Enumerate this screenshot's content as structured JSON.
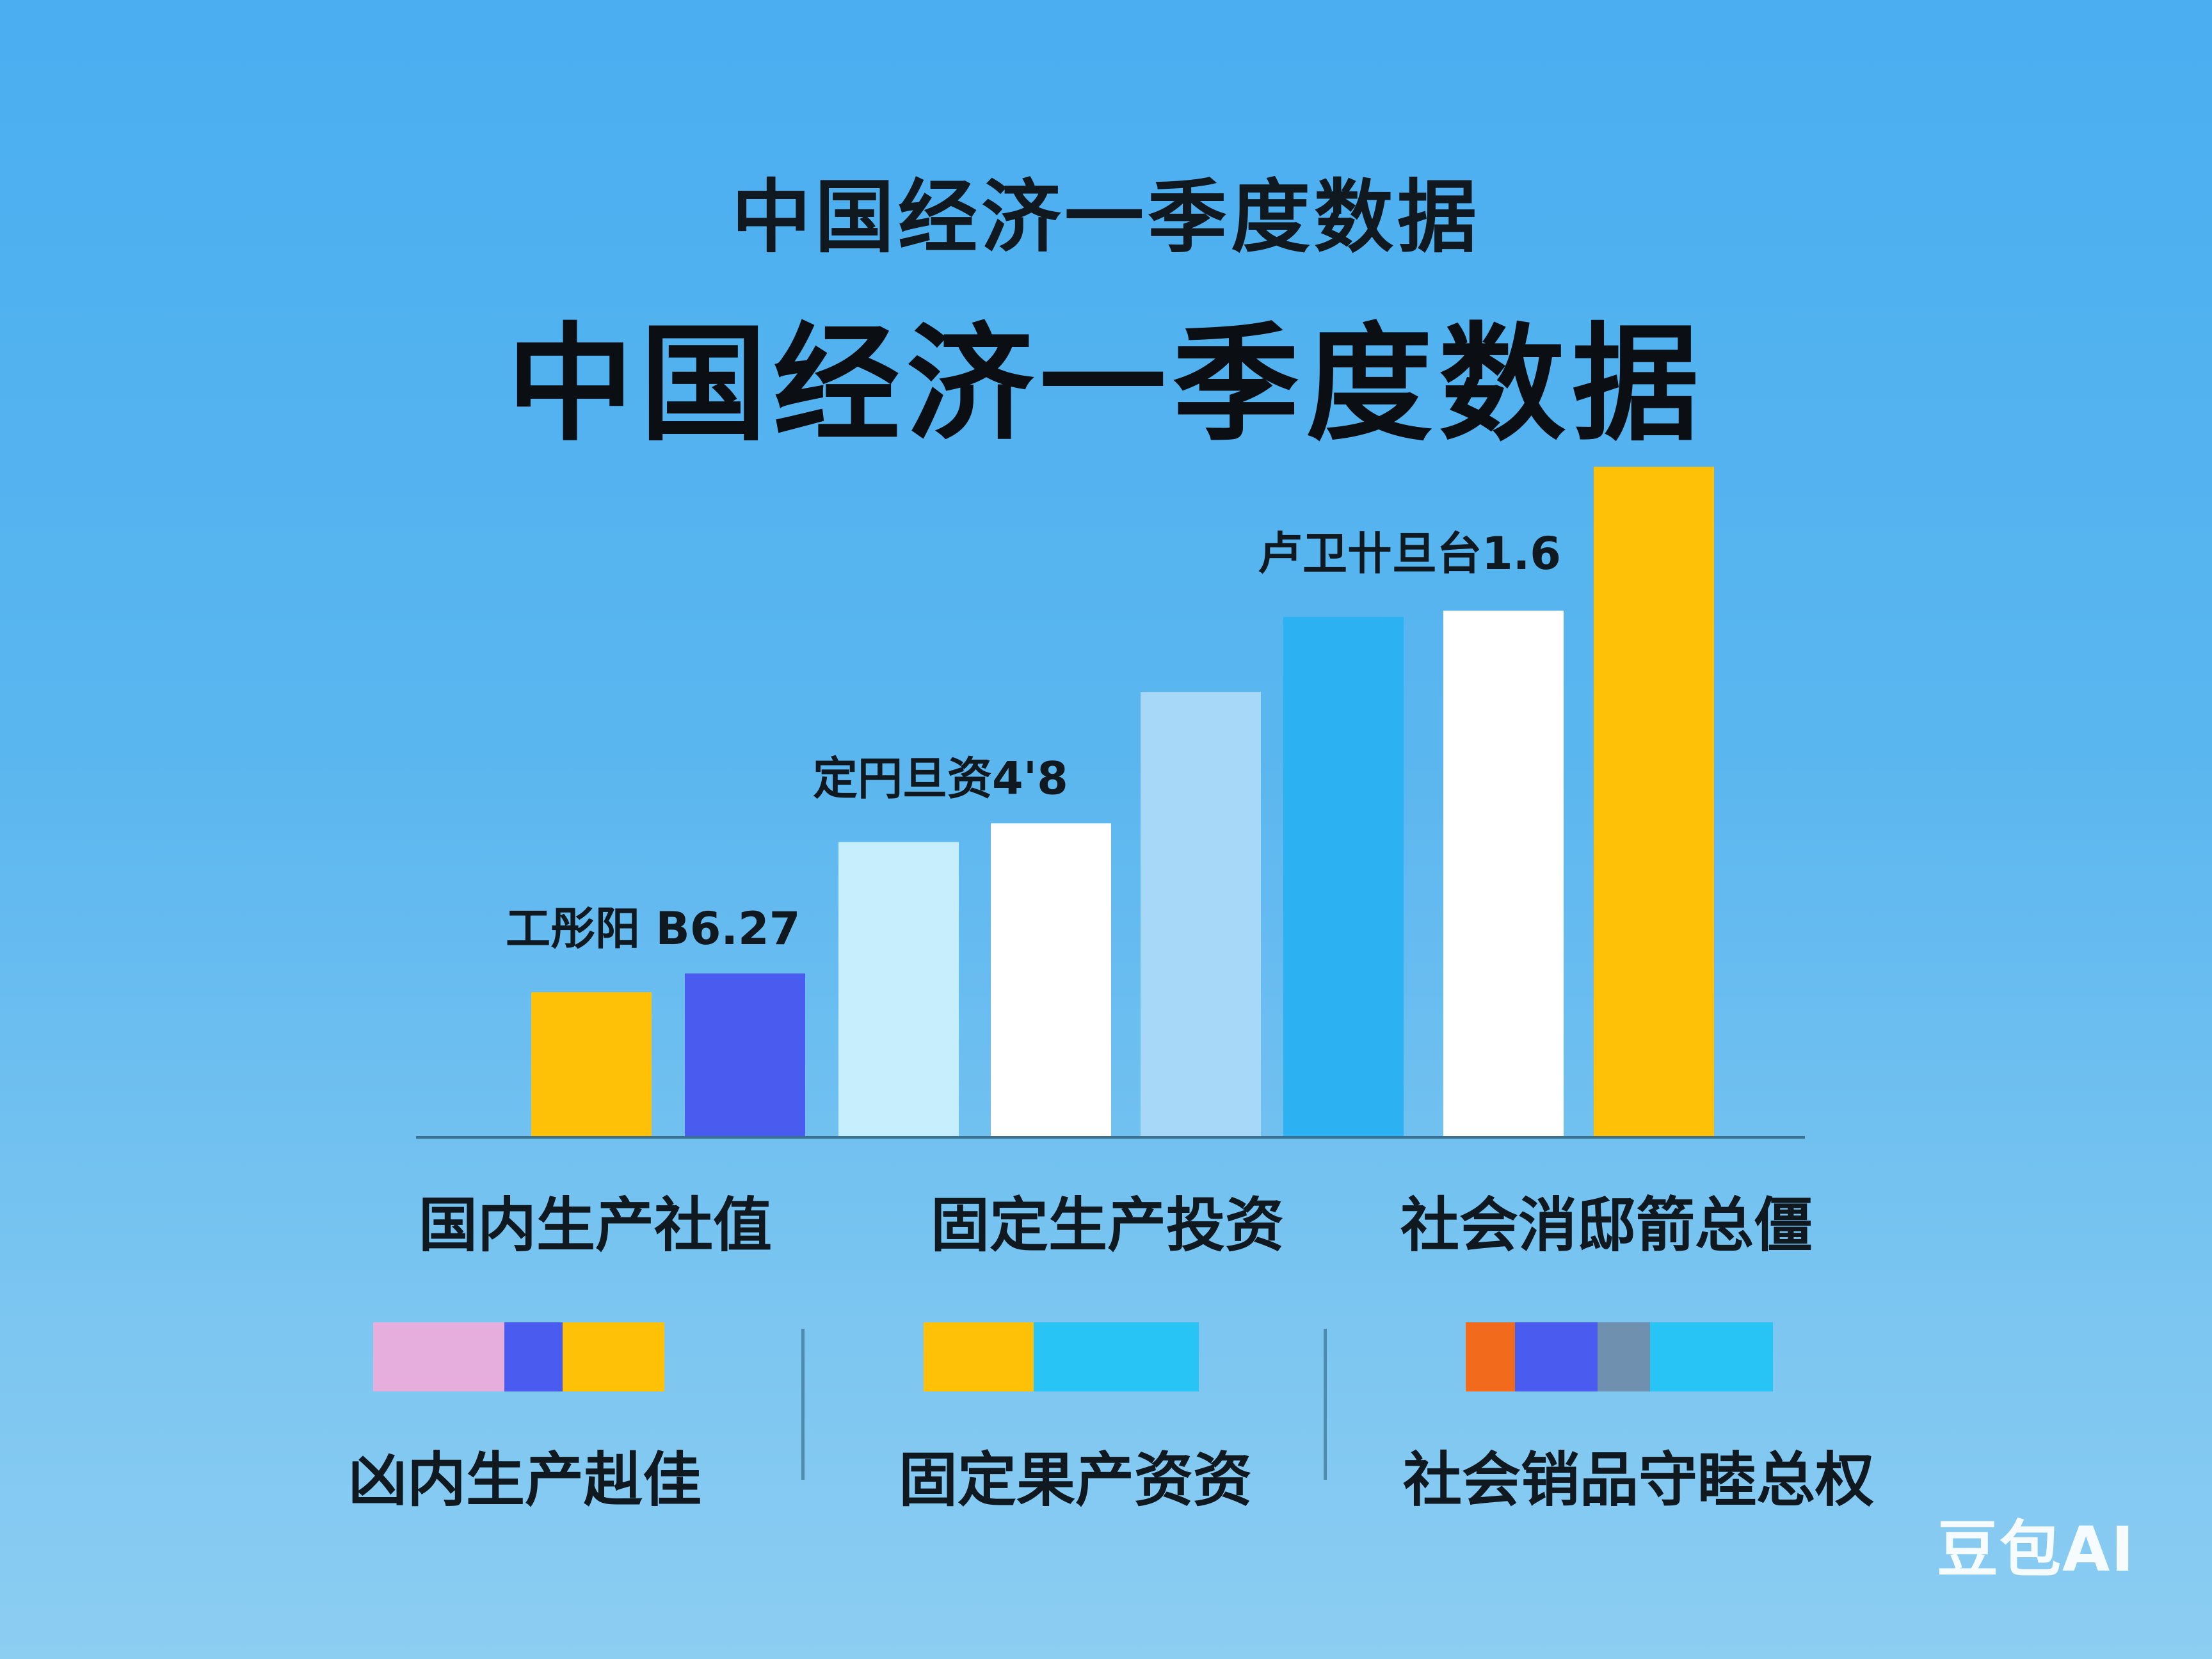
{
  "chart_data": {
    "type": "bar",
    "subtitle": "中国经济一季度数据",
    "title": "中国经济一季度数据",
    "xlabel": "",
    "ylabel": "",
    "grid": false,
    "categories": [
      "国内生产社值",
      "固定生产投资",
      "社会消邸箭总僵"
    ],
    "bars": [
      {
        "group": 0,
        "value": 23,
        "color": "#FFC107"
      },
      {
        "group": 0,
        "value": 26,
        "color": "#4A5CF0"
      },
      {
        "group": 1,
        "value": 47,
        "color": "#C6EEFD"
      },
      {
        "group": 1,
        "value": 50,
        "color": "#FFFFFF"
      },
      {
        "group": 1,
        "value": 71,
        "color": "#A8D8F8"
      },
      {
        "group": 2,
        "value": 83,
        "color": "#2CB2F2"
      },
      {
        "group": 2,
        "value": 84,
        "color": "#FFFFFF"
      },
      {
        "group": 2,
        "value": 107,
        "color": "#FFC107"
      }
    ],
    "annotations": [
      {
        "text": "工彤阳 B6.27",
        "bar": 0
      },
      {
        "text": "定円旦资4'8",
        "bar": 2
      },
      {
        "text": "卢卫卄旦台1.6",
        "bar": 5
      }
    ],
    "ylim": [
      0,
      110
    ]
  },
  "legend": {
    "groups": [
      {
        "label": "凶内生产赳佳",
        "colors": [
          "#E5AEDD",
          "#4A5CF0",
          "#FFC107"
        ],
        "weights": [
          0.45,
          0.2,
          0.35
        ]
      },
      {
        "label": "固定果产资资",
        "colors": [
          "#FFC107",
          "#29C4F6"
        ],
        "weights": [
          0.4,
          0.6
        ]
      },
      {
        "label": "社会销品守睦总权",
        "colors": [
          "#F26A1B",
          "#4A5CF0",
          "#6F90AE",
          "#29C4F6"
        ],
        "weights": [
          0.16,
          0.27,
          0.17,
          0.4
        ]
      }
    ]
  },
  "watermark": "豆包AI"
}
